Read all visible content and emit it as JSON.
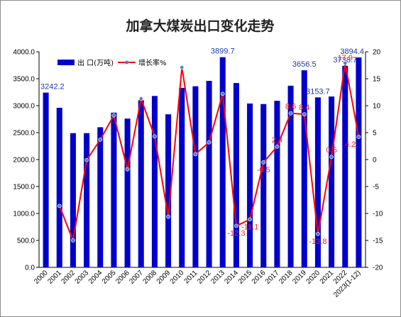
{
  "chart_data": {
    "type": "bar",
    "title": "加拿大煤炭出口变化走势",
    "categories": [
      "2000",
      "2001",
      "2002",
      "2003",
      "2004",
      "2005",
      "2006",
      "2007",
      "2008",
      "2009",
      "2010",
      "2011",
      "2012",
      "2013",
      "2014",
      "2015",
      "2016",
      "2017",
      "2018",
      "2019",
      "2020",
      "2021",
      "2022",
      "2023(1-12)"
    ],
    "series": [
      {
        "name": "出 口(万吨)",
        "type": "bar",
        "axis": "left",
        "color": "#0000cc",
        "values": [
          3242.2,
          2960,
          2490,
          2490,
          2600,
          2870,
          2760,
          3100,
          3180,
          2840,
          3330,
          3360,
          3460,
          3899.7,
          3420,
          3040,
          3030,
          3090,
          3370,
          3656.5,
          3153.7,
          3170,
          3738.7,
          3894.4
        ]
      },
      {
        "name": "增长率%",
        "type": "line",
        "axis": "right",
        "color": "#ff0000",
        "values": [
          null,
          -8.6,
          -15.0,
          -0.1,
          3.7,
          8.2,
          -1.8,
          11.3,
          4.3,
          -10.6,
          17.1,
          1.0,
          3.2,
          12.2,
          -12.3,
          -11.1,
          -0.5,
          2.4,
          8.6,
          8.4,
          -13.8,
          0.5,
          17.9,
          4.2
        ]
      }
    ],
    "bar_labels": [
      {
        "index": 0,
        "text": "3242.2"
      },
      {
        "index": 13,
        "text": "3899.7"
      },
      {
        "index": 19,
        "text": "3656.5"
      },
      {
        "index": 20,
        "text": "3153.7"
      },
      {
        "index": 22,
        "text": "3738.7"
      },
      {
        "index": 23,
        "text": "3894.4"
      }
    ],
    "rate_labels": [
      {
        "index": 14,
        "text": "-12.3"
      },
      {
        "index": 15,
        "text": "-11.1"
      },
      {
        "index": 16,
        "text": "-0.5"
      },
      {
        "index": 17,
        "text": "2.4"
      },
      {
        "index": 18,
        "text": "8.6"
      },
      {
        "index": 19,
        "text": "8.4"
      },
      {
        "index": 20,
        "text": "-13.8"
      },
      {
        "index": 21,
        "text": "0.5"
      },
      {
        "index": 22,
        "text": "17.9"
      },
      {
        "index": 23,
        "text": "4.2"
      }
    ],
    "ylim_left": [
      0,
      4000
    ],
    "yticks_left": [
      "0.0",
      "500.0",
      "1000.0",
      "1500.0",
      "2000.0",
      "2500.0",
      "3000.0",
      "3500.0",
      "4000.0"
    ],
    "ylim_right": [
      -20,
      20
    ],
    "yticks_right": [
      "-20",
      "-15",
      "-10",
      "-5",
      "0",
      "5",
      "10",
      "15",
      "20"
    ],
    "xlabel": "",
    "ylabel": "",
    "grid": false,
    "legend_position": "top-left"
  }
}
